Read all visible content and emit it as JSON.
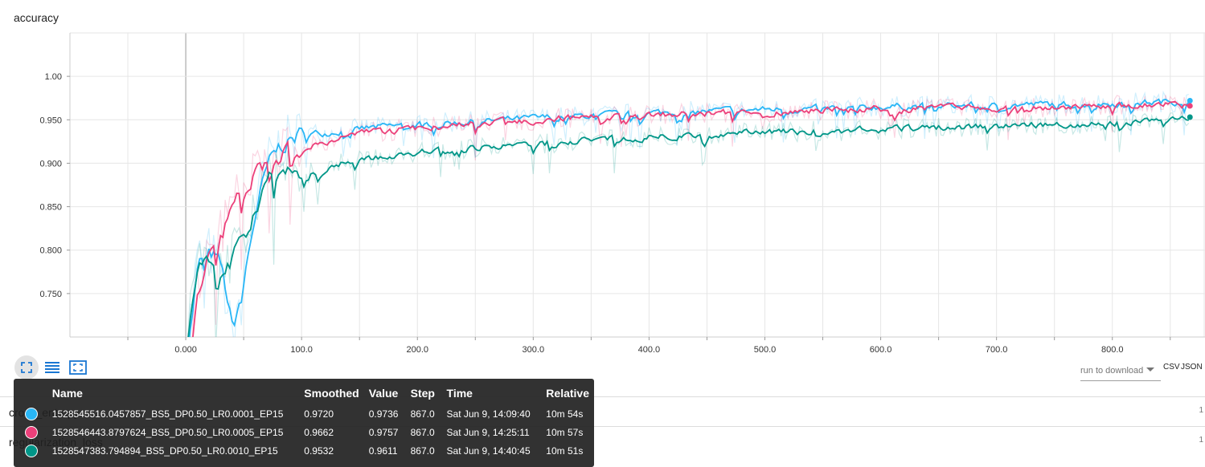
{
  "chart_title": "accuracy",
  "chart_data": {
    "type": "line",
    "title": "accuracy",
    "xlabel": "",
    "ylabel": "",
    "xlim": [
      -100,
      880
    ],
    "ylim": [
      0.7,
      1.05
    ],
    "x_ticks": [
      0,
      100,
      200,
      300,
      400,
      500,
      600,
      700,
      800
    ],
    "x_tick_labels": [
      "0.000",
      "100.0",
      "200.0",
      "300.0",
      "400.0",
      "500.0",
      "600.0",
      "700.0",
      "800.0"
    ],
    "y_ticks": [
      0.75,
      0.8,
      0.85,
      0.9,
      0.95,
      1.0
    ],
    "y_tick_labels": [
      "0.750",
      "0.800",
      "0.850",
      "0.900",
      "0.950",
      "1.00"
    ],
    "grid": true,
    "series": [
      {
        "name": "1528545516.0457857_BS5_DP0.50_LR0.0001_EP15",
        "color": "#29b6f6",
        "x": [
          0,
          10,
          20,
          30,
          40,
          50,
          60,
          70,
          80,
          100,
          120,
          150,
          200,
          250,
          300,
          350,
          400,
          450,
          500,
          550,
          600,
          650,
          700,
          750,
          800,
          850,
          867
        ],
        "values": [
          0.68,
          0.79,
          0.8,
          0.78,
          0.7,
          0.78,
          0.85,
          0.9,
          0.92,
          0.935,
          0.935,
          0.94,
          0.945,
          0.948,
          0.952,
          0.955,
          0.958,
          0.96,
          0.962,
          0.963,
          0.965,
          0.966,
          0.967,
          0.968,
          0.969,
          0.971,
          0.972
        ]
      },
      {
        "name": "1528546443.8797624_BS5_DP0.50_LR0.0005_EP15",
        "color": "#ec407a",
        "x": [
          0,
          10,
          20,
          30,
          40,
          50,
          60,
          70,
          80,
          100,
          120,
          150,
          200,
          250,
          300,
          350,
          400,
          450,
          500,
          550,
          600,
          650,
          700,
          750,
          800,
          850,
          867
        ],
        "values": [
          0.7,
          0.76,
          0.8,
          0.82,
          0.85,
          0.87,
          0.89,
          0.9,
          0.91,
          0.915,
          0.925,
          0.935,
          0.94,
          0.945,
          0.95,
          0.953,
          0.955,
          0.957,
          0.959,
          0.961,
          0.962,
          0.963,
          0.964,
          0.965,
          0.966,
          0.967,
          0.966
        ]
      },
      {
        "name": "1528547383.794894_BS5_DP0.50_LR0.0010_EP15",
        "color": "#009688",
        "x": [
          0,
          10,
          20,
          30,
          40,
          50,
          60,
          70,
          80,
          100,
          120,
          150,
          200,
          250,
          300,
          350,
          400,
          450,
          500,
          550,
          600,
          650,
          700,
          750,
          800,
          850,
          867
        ],
        "values": [
          0.7,
          0.78,
          0.79,
          0.77,
          0.79,
          0.82,
          0.85,
          0.88,
          0.89,
          0.885,
          0.895,
          0.905,
          0.912,
          0.918,
          0.922,
          0.927,
          0.93,
          0.933,
          0.935,
          0.937,
          0.939,
          0.941,
          0.943,
          0.945,
          0.947,
          0.951,
          0.953
        ]
      }
    ]
  },
  "toolbar": {
    "fit_icon": "fit-domain-icon",
    "log_icon": "log-scale-icon",
    "expand_icon": "expand-icon"
  },
  "download": {
    "placeholder": "run to download",
    "csv_label": "CSV",
    "json_label": "JSON"
  },
  "rows_below": [
    {
      "label": "cross_entropy",
      "count": "1"
    },
    {
      "label": "regularization_loss",
      "count": "1"
    }
  ],
  "tooltip": {
    "headers": [
      "Name",
      "Smoothed",
      "Value",
      "Step",
      "Time",
      "Relative"
    ],
    "rows": [
      {
        "color": "#29b6f6",
        "name": "1528545516.0457857_BS5_DP0.50_LR0.0001_EP15",
        "smoothed": "0.9720",
        "value": "0.9736",
        "step": "867.0",
        "time": "Sat Jun 9, 14:09:40",
        "relative": "10m 54s"
      },
      {
        "color": "#ec407a",
        "name": "1528546443.8797624_BS5_DP0.50_LR0.0005_EP15",
        "smoothed": "0.9662",
        "value": "0.9757",
        "step": "867.0",
        "time": "Sat Jun 9, 14:25:11",
        "relative": "10m 57s"
      },
      {
        "color": "#009688",
        "name": "1528547383.794894_BS5_DP0.50_LR0.0010_EP15",
        "smoothed": "0.9532",
        "value": "0.9611",
        "step": "867.0",
        "time": "Sat Jun 9, 14:40:45",
        "relative": "10m 51s"
      }
    ]
  }
}
